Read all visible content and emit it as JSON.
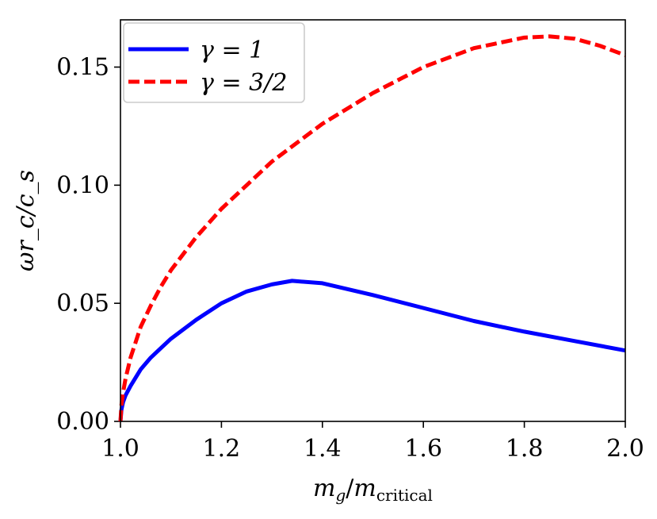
{
  "chart_data": {
    "type": "line",
    "xlabel": "m_g/m_critical",
    "xlabel_parts": {
      "main": "m",
      "main_sub": "g",
      "sep": "/",
      "denom": "m",
      "denom_sub": "critical"
    },
    "ylabel": "ωr_c/c_s",
    "xlim": [
      1.0,
      2.0
    ],
    "ylim": [
      0.0,
      0.17
    ],
    "xticks": [
      "1.0",
      "1.2",
      "1.4",
      "1.6",
      "1.8",
      "2.0"
    ],
    "yticks": [
      "0.00",
      "0.05",
      "0.10",
      "0.15"
    ],
    "xtick_values": [
      1.0,
      1.2,
      1.4,
      1.6,
      1.8,
      2.0
    ],
    "ytick_values": [
      0.0,
      0.05,
      0.1,
      0.15
    ],
    "grid": false,
    "legend_position": "top-left",
    "series": [
      {
        "name": "γ = 1",
        "color": "#0000ff",
        "style": "solid",
        "x": [
          1.0,
          1.002,
          1.005,
          1.01,
          1.02,
          1.04,
          1.06,
          1.08,
          1.1,
          1.15,
          1.2,
          1.25,
          1.3,
          1.34,
          1.4,
          1.5,
          1.6,
          1.7,
          1.8,
          1.9,
          2.0
        ],
        "y": [
          0.0,
          0.005,
          0.008,
          0.011,
          0.015,
          0.022,
          0.027,
          0.031,
          0.035,
          0.043,
          0.05,
          0.055,
          0.058,
          0.0595,
          0.0585,
          0.0535,
          0.048,
          0.0425,
          0.038,
          0.034,
          0.03
        ]
      },
      {
        "name": "γ = 3/2",
        "color": "#ff0000",
        "style": "dashed",
        "x": [
          1.0,
          1.002,
          1.005,
          1.01,
          1.02,
          1.04,
          1.06,
          1.08,
          1.1,
          1.15,
          1.2,
          1.3,
          1.4,
          1.5,
          1.6,
          1.7,
          1.8,
          1.85,
          1.9,
          1.95,
          2.0
        ],
        "y": [
          0.0,
          0.007,
          0.012,
          0.018,
          0.027,
          0.04,
          0.049,
          0.057,
          0.064,
          0.078,
          0.09,
          0.11,
          0.126,
          0.139,
          0.15,
          0.158,
          0.1625,
          0.163,
          0.162,
          0.159,
          0.155
        ]
      }
    ]
  }
}
